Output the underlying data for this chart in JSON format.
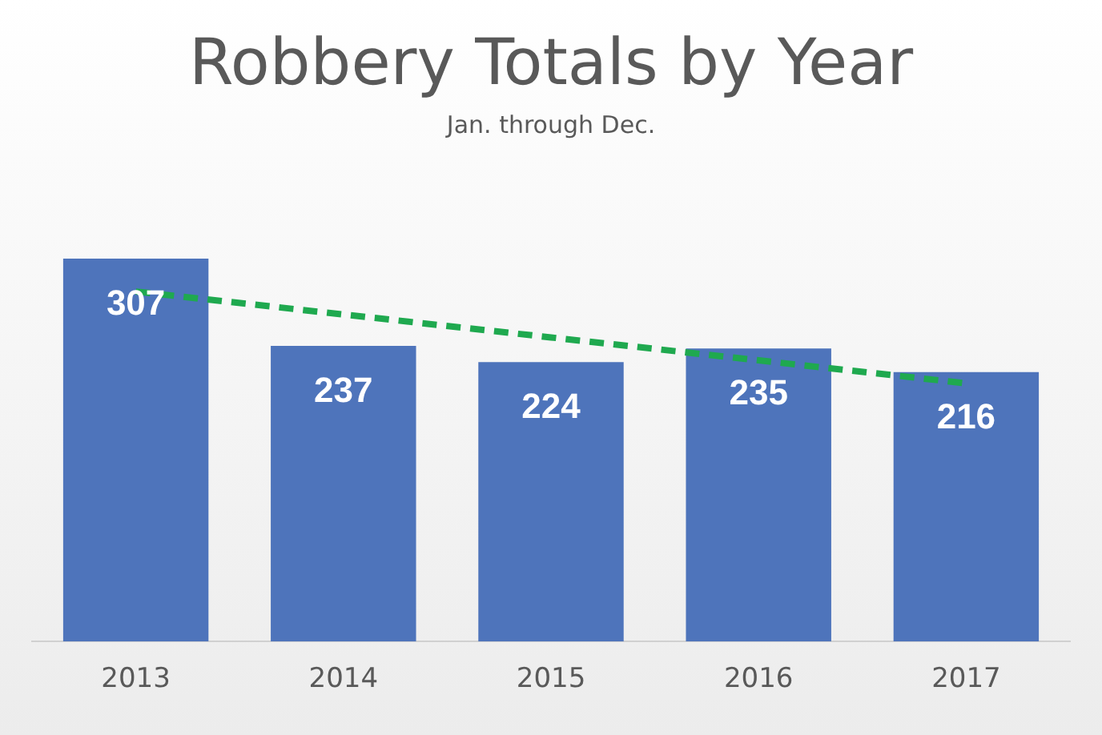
{
  "chart_data": {
    "type": "bar",
    "title": "Robbery Totals by Year",
    "subtitle": "Jan. through Dec.",
    "categories": [
      "2013",
      "2014",
      "2015",
      "2016",
      "2017"
    ],
    "series": [
      {
        "color": "#4e74bb",
        "values": [
          307,
          237,
          224,
          235,
          216
        ],
        "value_labels": [
          "307",
          "237",
          "224",
          "235",
          "216"
        ]
      },
      {
        "type": "line",
        "color": "#1fa94f",
        "line_style": "dashed",
        "values": [
          280.6,
          262.2,
          243.8,
          225.4,
          207
        ]
      }
    ],
    "grid": false,
    "legend": false
  }
}
